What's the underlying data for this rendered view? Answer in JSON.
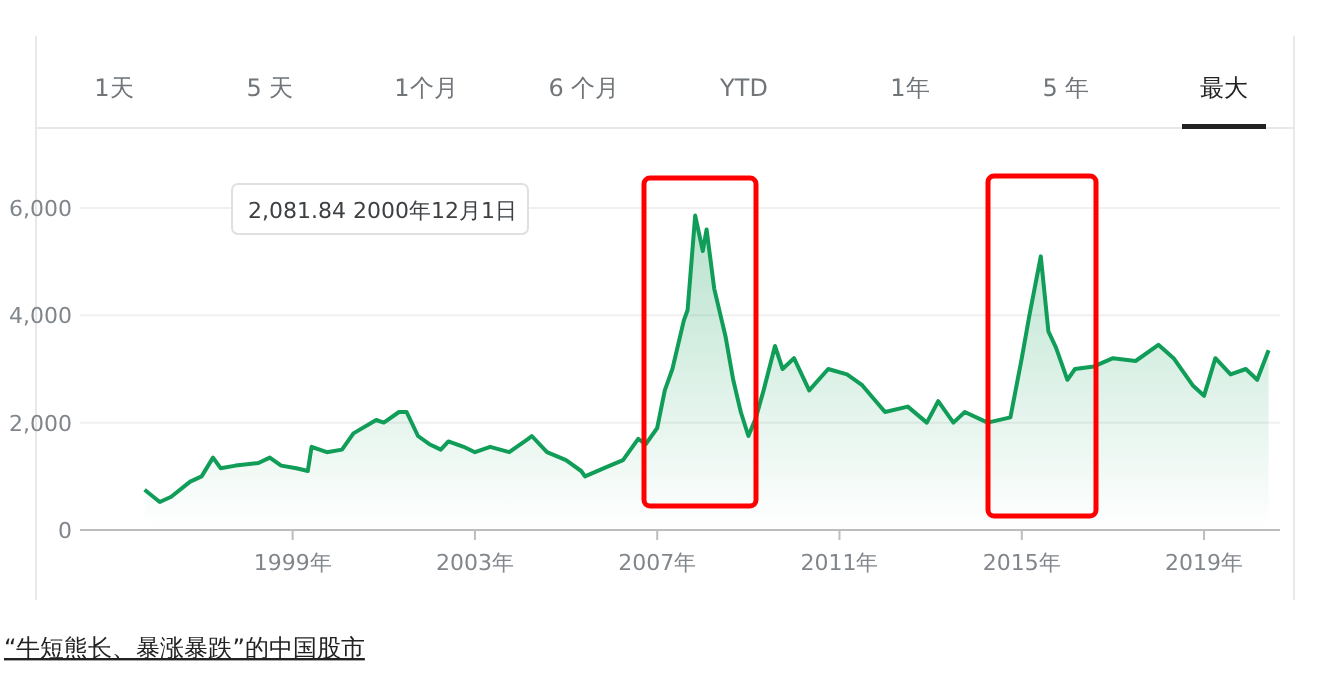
{
  "chart_data": {
    "type": "area",
    "title": "“牛短熊长、暴涨暴跌”的中国股市",
    "annotations": [
      "1天",
      "5 天",
      "1个月",
      "6 个月",
      "YTD",
      "1年",
      "5 年",
      "最大",
      "2,081.84  2000年12月1日"
    ],
    "x": [
      "1995-10",
      "1996-02",
      "1996-05",
      "1996-10",
      "1997-01",
      "1997-04",
      "1997-06",
      "1997-10",
      "1998-04",
      "1998-07",
      "1998-10",
      "1999-02",
      "1999-05",
      "1999-06",
      "1999-10",
      "2000-02",
      "2000-05",
      "2000-11",
      "2001-01",
      "2001-05",
      "2001-07",
      "2001-10",
      "2002-01",
      "2002-04",
      "2002-06",
      "2002-10",
      "2003-01",
      "2003-05",
      "2003-10",
      "2004-03",
      "2004-04",
      "2004-08",
      "2005-01",
      "2005-05",
      "2005-06",
      "2005-11",
      "2006-04",
      "2006-08",
      "2006-10",
      "2007-01",
      "2007-03",
      "2007-05",
      "2007-08",
      "2007-09",
      "2007-11",
      "2008-01",
      "2008-02",
      "2008-04",
      "2008-07",
      "2008-09",
      "2008-11",
      "2009-01",
      "2009-03",
      "2009-05",
      "2009-08",
      "2009-10",
      "2010-01",
      "2010-05",
      "2010-10",
      "2011-03",
      "2011-07",
      "2012-01",
      "2012-07",
      "2012-12",
      "2013-03",
      "2013-07",
      "2013-10",
      "2014-04",
      "2014-10",
      "2015-01",
      "2015-03",
      "2015-06",
      "2015-08",
      "2015-10",
      "2016-01",
      "2016-03",
      "2016-08",
      "2017-01",
      "2017-07",
      "2018-01",
      "2018-05",
      "2018-10",
      "2019-01",
      "2019-04",
      "2019-08",
      "2019-12",
      "2020-03",
      "2020-06"
    ],
    "series": [
      {
        "color": "#0f9d58",
        "values": [
          750,
          520,
          620,
          900,
          1000,
          1350,
          1150,
          1200,
          1250,
          1350,
          1200,
          1150,
          1100,
          1550,
          1450,
          1500,
          1800,
          2050,
          2000,
          2200,
          2200,
          1750,
          1600,
          1500,
          1650,
          1550,
          1450,
          1550,
          1450,
          1700,
          1750,
          1450,
          1300,
          1100,
          1000,
          1150,
          1300,
          1700,
          1600,
          1900,
          2600,
          3000,
          3900,
          4100,
          5860,
          5200,
          5600,
          4500,
          3600,
          2800,
          2200,
          1750,
          2100,
          2600,
          3430,
          3000,
          3200,
          2600,
          3000,
          2900,
          2700,
          2200,
          2300,
          2000,
          2400,
          2000,
          2200,
          2000,
          2100,
          3200,
          4000,
          5100,
          3700,
          3400,
          2800,
          3000,
          3050,
          3200,
          3150,
          3450,
          3200,
          2700,
          2500,
          3200,
          2900,
          3000,
          2800,
          3350
        ]
      }
    ],
    "xlim": [
      "1994-05",
      "2020-09"
    ],
    "ylim": [
      0,
      6000
    ],
    "xticks": [
      {
        "value": "1999-01",
        "label": "1999年"
      },
      {
        "value": "2003-01",
        "label": "2003年"
      },
      {
        "value": "2007-01",
        "label": "2007年"
      },
      {
        "value": "2011-01",
        "label": "2011年"
      },
      {
        "value": "2015-01",
        "label": "2015年"
      },
      {
        "value": "2019-01",
        "label": "2019年"
      }
    ],
    "yticks": [
      {
        "value": 0,
        "label": "0"
      },
      {
        "value": 2000,
        "label": "2,000"
      },
      {
        "value": 4000,
        "label": "4,000"
      },
      {
        "value": 6000,
        "label": "6,000"
      }
    ],
    "grid": "y"
  }
}
